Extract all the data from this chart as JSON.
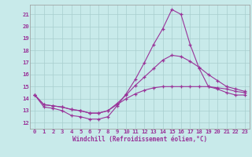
{
  "xlabel": "Windchill (Refroidissement éolien,°C)",
  "ylim": [
    11.5,
    21.8
  ],
  "xlim": [
    -0.5,
    23.5
  ],
  "yticks": [
    12,
    13,
    14,
    15,
    16,
    17,
    18,
    19,
    20,
    21
  ],
  "xticks": [
    0,
    1,
    2,
    3,
    4,
    5,
    6,
    7,
    8,
    9,
    10,
    11,
    12,
    13,
    14,
    15,
    16,
    17,
    18,
    19,
    20,
    21,
    22,
    23
  ],
  "bg_color": "#c8eaea",
  "grid_color": "#a8cece",
  "line_color": "#993399",
  "series_main": [
    14.3,
    13.3,
    13.2,
    13.0,
    12.6,
    12.5,
    12.3,
    12.3,
    12.5,
    13.4,
    14.4,
    15.6,
    17.0,
    18.5,
    19.8,
    21.4,
    21.0,
    18.5,
    16.5,
    15.0,
    14.8,
    14.5,
    14.3,
    14.3
  ],
  "series_mid": [
    14.3,
    13.5,
    13.4,
    13.3,
    13.1,
    13.0,
    12.8,
    12.8,
    13.0,
    13.6,
    14.3,
    15.1,
    15.8,
    16.5,
    17.2,
    17.6,
    17.5,
    17.1,
    16.6,
    16.0,
    15.5,
    15.0,
    14.8,
    14.6
  ],
  "series_low": [
    14.3,
    13.5,
    13.4,
    13.3,
    13.1,
    13.0,
    12.8,
    12.8,
    13.0,
    13.5,
    14.0,
    14.4,
    14.7,
    14.9,
    15.0,
    15.0,
    15.0,
    15.0,
    15.0,
    15.0,
    14.9,
    14.8,
    14.6,
    14.5
  ]
}
